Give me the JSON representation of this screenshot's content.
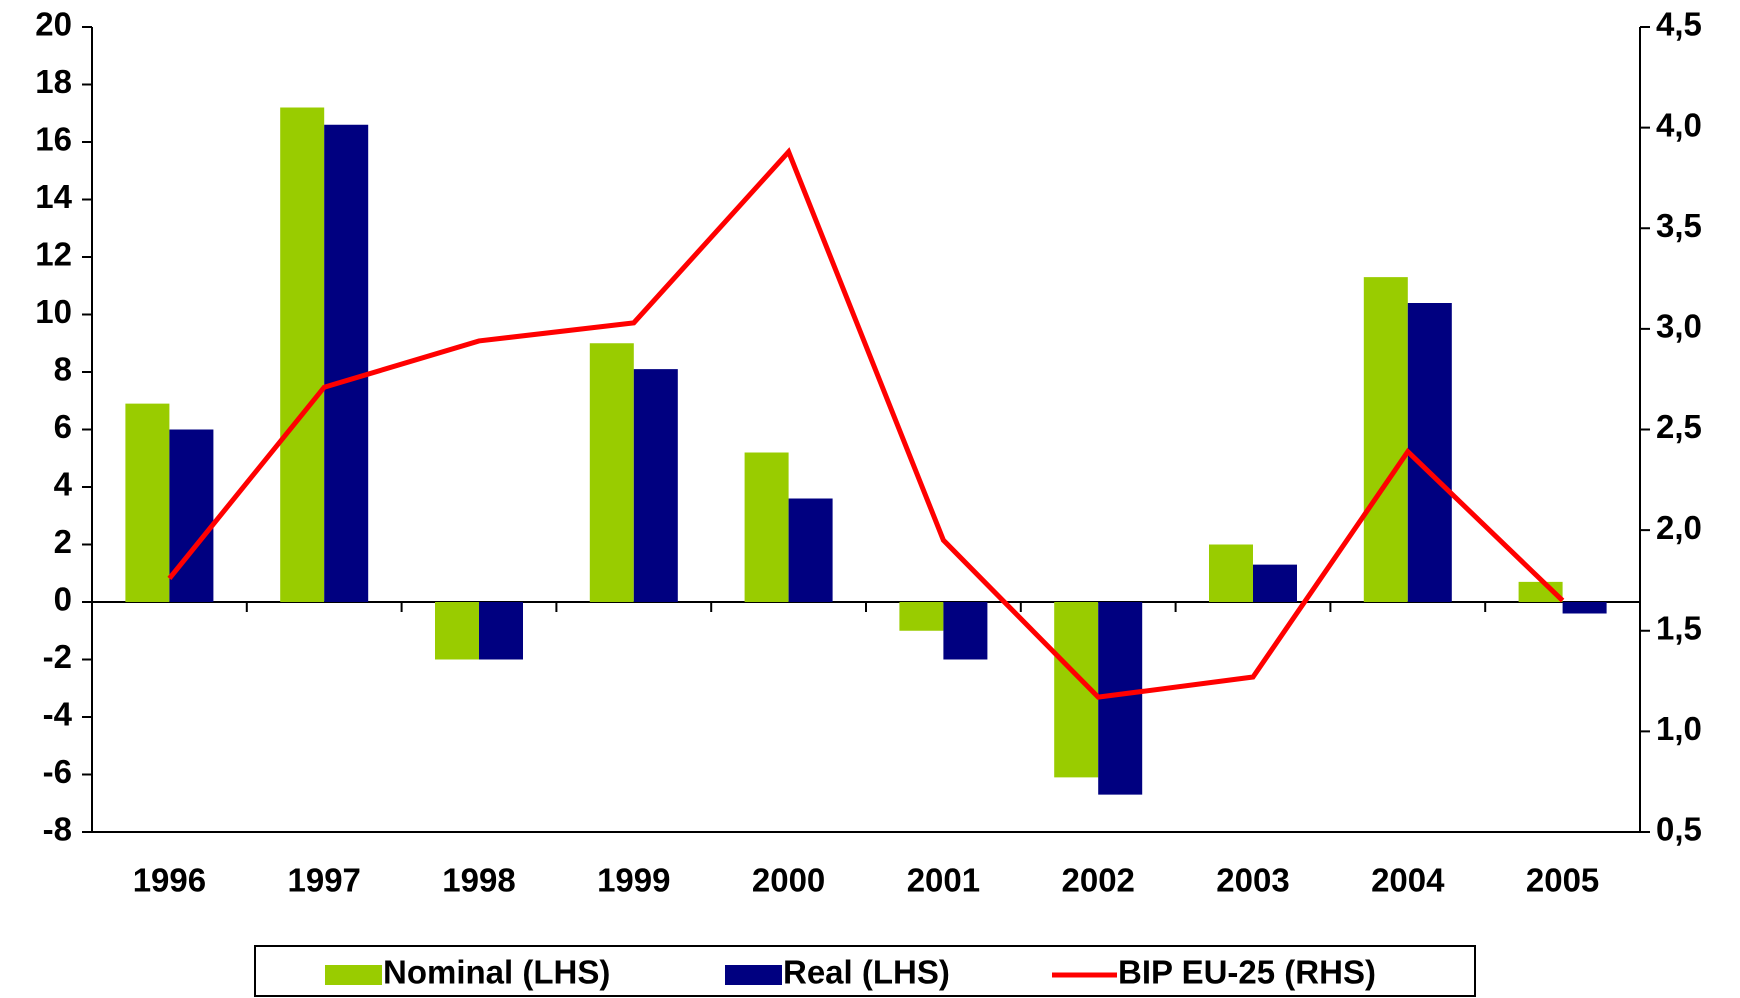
{
  "chart_data": {
    "type": "bar",
    "categories": [
      "1996",
      "1997",
      "1998",
      "1999",
      "2000",
      "2001",
      "2002",
      "2003",
      "2004",
      "2005"
    ],
    "series": [
      {
        "name": "Nominal (LHS)",
        "type": "bar",
        "color": "#99cc00",
        "values": [
          6.9,
          17.2,
          -2.0,
          9.0,
          5.2,
          -1.0,
          -6.1,
          2.0,
          11.3,
          0.7
        ]
      },
      {
        "name": "Real (LHS)",
        "type": "bar",
        "color": "#000080",
        "values": [
          6.0,
          16.6,
          -2.0,
          8.1,
          3.6,
          -2.0,
          -6.7,
          1.3,
          10.4,
          -0.4
        ]
      },
      {
        "name": "BIP EU-25 (RHS)",
        "type": "line",
        "axis": "y2",
        "color": "#ff0000",
        "values": [
          1.76,
          2.71,
          2.94,
          3.03,
          3.88,
          1.95,
          1.17,
          1.27,
          2.39,
          1.65
        ]
      }
    ],
    "ylim": [
      -8,
      20
    ],
    "yticks": [
      -8,
      -6,
      -4,
      -2,
      0,
      2,
      4,
      6,
      8,
      10,
      12,
      14,
      16,
      18,
      20
    ],
    "y2lim": [
      0.5,
      4.5
    ],
    "y2ticks": [
      {
        "value": 0.5,
        "label": "0,5"
      },
      {
        "value": 1.0,
        "label": "1,0"
      },
      {
        "value": 1.5,
        "label": "1,5"
      },
      {
        "value": 2.0,
        "label": "2,0"
      },
      {
        "value": 2.5,
        "label": "2,5"
      },
      {
        "value": 3.0,
        "label": "3,0"
      },
      {
        "value": 3.5,
        "label": "3,5"
      },
      {
        "value": 4.0,
        "label": "4,0"
      },
      {
        "value": 4.5,
        "label": "4,5"
      }
    ],
    "legend": "bottom"
  }
}
